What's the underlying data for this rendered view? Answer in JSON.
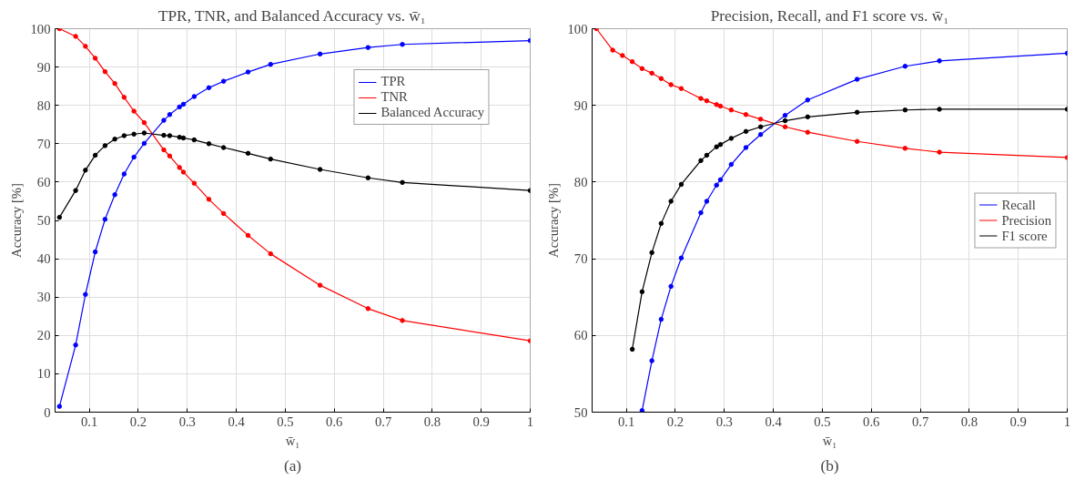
{
  "chart_data": [
    {
      "type": "line",
      "title": "TPR, TNR, and Balanced Accuracy vs. w̄₁",
      "xlabel": "w̄₁",
      "ylabel": "Accuracy [%]",
      "annotations": [
        "(a)"
      ],
      "x": [
        0.039,
        0.072,
        0.092,
        0.112,
        0.132,
        0.152,
        0.171,
        0.191,
        0.212,
        0.252,
        0.264,
        0.284,
        0.292,
        0.314,
        0.344,
        0.374,
        0.424,
        0.47,
        0.571,
        0.669,
        0.739,
        1.0
      ],
      "series": [
        {
          "name": "TPR",
          "color": "#0000ff",
          "values": [
            1.5,
            17.5,
            30.7,
            41.8,
            50.3,
            56.7,
            62.1,
            66.5,
            70.1,
            76.1,
            77.6,
            79.6,
            80.3,
            82.3,
            84.6,
            86.3,
            88.7,
            90.7,
            93.4,
            95.1,
            95.9,
            96.9
          ]
        },
        {
          "name": "TNR",
          "color": "#ff0000",
          "values": [
            100,
            98.0,
            95.4,
            92.3,
            88.8,
            85.7,
            82.1,
            78.5,
            75.5,
            68.4,
            66.8,
            63.8,
            62.6,
            59.7,
            55.5,
            51.8,
            46.1,
            41.3,
            33.1,
            27.0,
            23.9,
            18.6
          ]
        },
        {
          "name": "Balanced Accuracy",
          "color": "#000000",
          "values": [
            50.8,
            57.8,
            63.1,
            67.0,
            69.5,
            71.2,
            72.1,
            72.5,
            72.8,
            72.2,
            72.1,
            71.7,
            71.5,
            71.0,
            70.0,
            69.0,
            67.5,
            66.0,
            63.3,
            61.1,
            59.9,
            57.8
          ]
        }
      ],
      "xlim": [
        0.03,
        1
      ],
      "ylim": [
        0,
        100
      ],
      "xticks": [
        0.1,
        0.2,
        0.3,
        0.4,
        0.5,
        0.6,
        0.7,
        0.8,
        0.9,
        1
      ],
      "yticks": [
        0,
        10,
        20,
        30,
        40,
        50,
        60,
        70,
        80,
        90,
        100
      ],
      "grid": true,
      "legend": "top right",
      "marker": "circle"
    },
    {
      "type": "line",
      "title": "Precision, Recall, and F1 score vs. w̄₁",
      "xlabel": "w̄₁",
      "ylabel": "Accuracy [%]",
      "annotations": [
        "(b)"
      ],
      "x": [
        0.039,
        0.072,
        0.092,
        0.112,
        0.132,
        0.152,
        0.171,
        0.191,
        0.212,
        0.252,
        0.264,
        0.284,
        0.292,
        0.314,
        0.344,
        0.374,
        0.424,
        0.47,
        0.571,
        0.669,
        0.739,
        1.0
      ],
      "series": [
        {
          "name": "Recall",
          "color": "#0000ff",
          "values": [
            null,
            null,
            null,
            null,
            50.2,
            56.7,
            62.1,
            66.4,
            70.1,
            76.0,
            77.5,
            79.6,
            80.3,
            82.3,
            84.5,
            86.2,
            88.7,
            90.7,
            93.4,
            95.1,
            95.8,
            96.8
          ]
        },
        {
          "name": "Precision",
          "color": "#ff0000",
          "values": [
            100,
            97.2,
            96.5,
            95.7,
            94.8,
            94.2,
            93.5,
            92.7,
            92.2,
            90.9,
            90.6,
            90.1,
            89.9,
            89.4,
            88.8,
            88.2,
            87.2,
            86.5,
            85.3,
            84.4,
            83.9,
            83.2
          ]
        },
        {
          "name": "F1 score",
          "color": "#000000",
          "values": [
            null,
            null,
            null,
            58.2,
            65.7,
            70.8,
            74.6,
            77.5,
            79.7,
            82.8,
            83.5,
            84.6,
            84.9,
            85.7,
            86.6,
            87.2,
            88.0,
            88.5,
            89.1,
            89.4,
            89.5,
            89.5
          ]
        }
      ],
      "xlim": [
        0.03,
        1
      ],
      "ylim": [
        50,
        100
      ],
      "xticks": [
        0.1,
        0.2,
        0.3,
        0.4,
        0.5,
        0.6,
        0.7,
        0.8,
        0.9,
        1
      ],
      "yticks": [
        50,
        60,
        70,
        80,
        90,
        100
      ],
      "grid": true,
      "legend": "right",
      "marker": "circle"
    }
  ]
}
